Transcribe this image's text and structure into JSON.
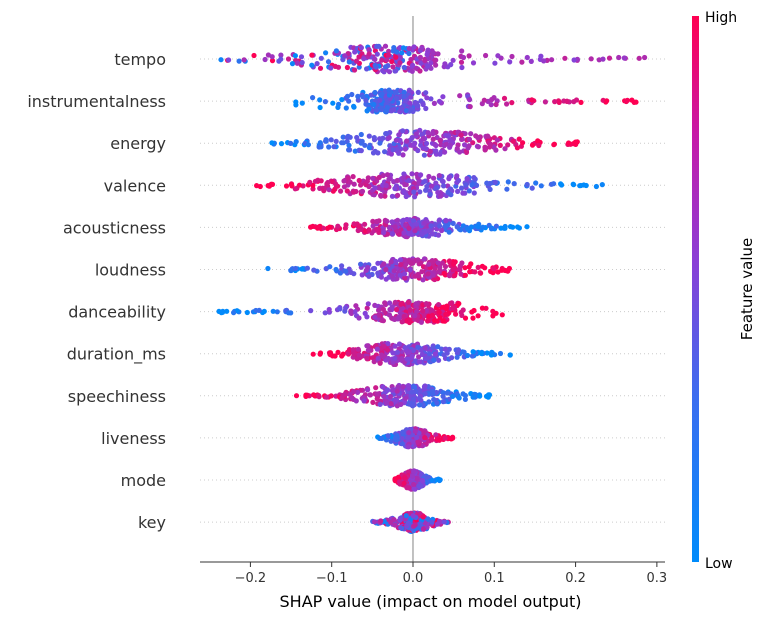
{
  "chart_data": {
    "type": "scatter",
    "subtype": "shap-beeswarm",
    "xlabel": "SHAP value (impact on model output)",
    "xlim": [
      -0.262,
      0.31
    ],
    "xticks": [
      -0.2,
      -0.1,
      0.0,
      0.1,
      0.2,
      0.3
    ],
    "xtick_labels": [
      "−0.2",
      "−0.1",
      "0.0",
      "0.1",
      "0.2",
      "0.3"
    ],
    "colorbar": {
      "title": "Feature value",
      "high_label": "High",
      "low_label": "Low",
      "low_color": "#008bfb",
      "high_color": "#ff0052"
    },
    "features": [
      {
        "name": "tempo",
        "min": -0.24,
        "max": 0.285,
        "bulk": [
          -0.08,
          0.02
        ],
        "high_side": "mixed-right",
        "spread": 0.5
      },
      {
        "name": "instrumentalness",
        "min": -0.15,
        "max": 0.275,
        "bulk": [
          -0.05,
          0.0
        ],
        "high_side": "right",
        "spread": 0.4
      },
      {
        "name": "energy",
        "min": -0.18,
        "max": 0.225,
        "bulk": [
          -0.06,
          0.08
        ],
        "high_side": "right",
        "spread": 0.5
      },
      {
        "name": "valence",
        "min": -0.205,
        "max": 0.235,
        "bulk": [
          -0.07,
          0.06
        ],
        "high_side": "left",
        "spread": 0.45
      },
      {
        "name": "acousticness",
        "min": -0.13,
        "max": 0.145,
        "bulk": [
          -0.03,
          0.03
        ],
        "high_side": "left",
        "spread": 0.3
      },
      {
        "name": "loudness",
        "min": -0.18,
        "max": 0.125,
        "bulk": [
          -0.05,
          0.05
        ],
        "high_side": "right",
        "spread": 0.4
      },
      {
        "name": "danceability",
        "min": -0.24,
        "max": 0.11,
        "bulk": [
          -0.03,
          0.04
        ],
        "high_side": "right",
        "spread": 0.4
      },
      {
        "name": "duration_ms",
        "min": -0.125,
        "max": 0.12,
        "bulk": [
          -0.06,
          0.03
        ],
        "high_side": "left",
        "spread": 0.4
      },
      {
        "name": "speechiness",
        "min": -0.145,
        "max": 0.1,
        "bulk": [
          -0.05,
          0.03
        ],
        "high_side": "left",
        "spread": 0.4
      },
      {
        "name": "liveness",
        "min": -0.045,
        "max": 0.05,
        "bulk": [
          -0.01,
          0.01
        ],
        "high_side": "right",
        "spread": 0.3
      },
      {
        "name": "mode",
        "min": -0.025,
        "max": 0.035,
        "bulk": [
          -0.01,
          0.01
        ],
        "high_side": "left",
        "spread": 0.3
      },
      {
        "name": "key",
        "min": -0.05,
        "max": 0.045,
        "bulk": [
          -0.01,
          0.01
        ],
        "high_side": "mixed",
        "spread": 0.3
      }
    ]
  }
}
